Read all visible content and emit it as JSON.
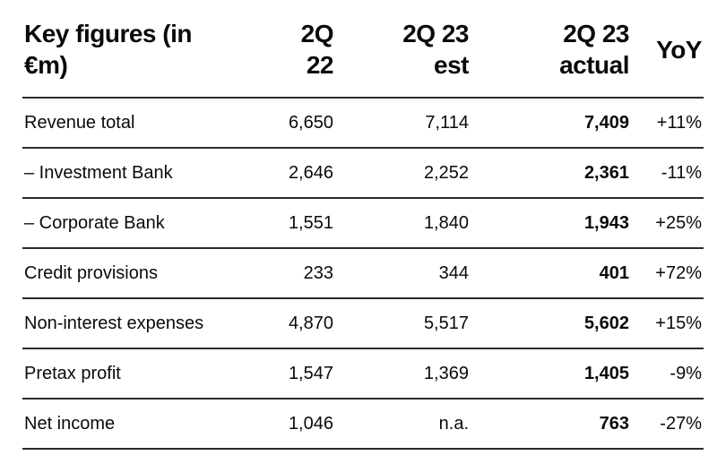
{
  "chart_data": {
    "type": "table",
    "title": "Key figures (in €m)",
    "headers": [
      {
        "label": "Key figures (in €m)",
        "lines": [
          "Key figures (in",
          "€m)"
        ]
      },
      {
        "label": "2Q 22",
        "lines": [
          "2Q",
          "22"
        ]
      },
      {
        "label": "2Q 23 est",
        "lines": [
          "2Q 23",
          "est"
        ]
      },
      {
        "label": "2Q 23 actual",
        "lines": [
          "2Q 23",
          "actual"
        ]
      },
      {
        "label": "YoY",
        "lines": [
          "YoY"
        ]
      }
    ],
    "rows": [
      {
        "cells": [
          "Revenue total",
          "6,650",
          "7,114",
          "7,409",
          "+11%"
        ]
      },
      {
        "cells": [
          "– Investment Bank",
          "2,646",
          "2,252",
          "2,361",
          "-11%"
        ]
      },
      {
        "cells": [
          "– Corporate Bank",
          "1,551",
          "1,840",
          "1,943",
          "+25%"
        ]
      },
      {
        "cells": [
          "Credit provisions",
          "233",
          "344",
          "401",
          "+72%"
        ]
      },
      {
        "cells": [
          "Non-interest expenses",
          "4,870",
          "5,517",
          "5,602",
          "+15%"
        ]
      },
      {
        "cells": [
          "Pretax profit",
          "1,547",
          "1,369",
          "1,405",
          "-9%"
        ]
      },
      {
        "cells": [
          "Net income",
          "1,046",
          "n.a.",
          "763",
          "-27%"
        ]
      }
    ]
  },
  "colors": {
    "text": "#0a0a0a",
    "rule": "#2b2b2b",
    "background": "#ffffff"
  }
}
